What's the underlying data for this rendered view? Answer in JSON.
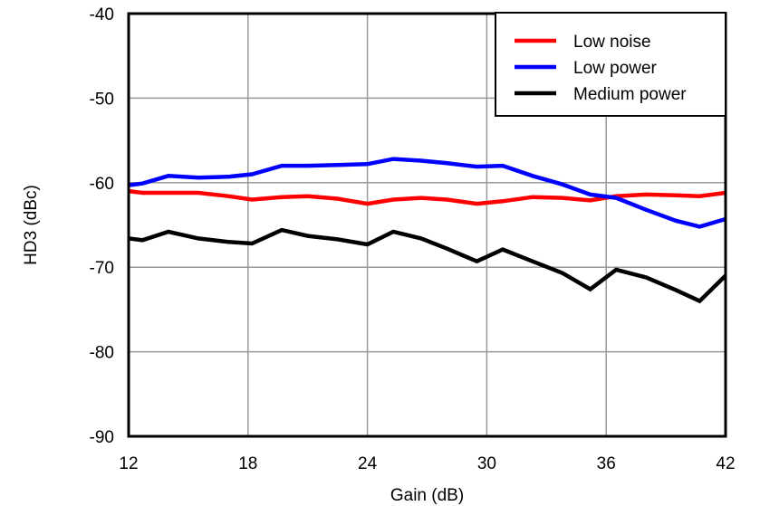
{
  "chart_data": {
    "type": "line",
    "title": "",
    "xlabel": "Gain (dB)",
    "ylabel": "HD3 (dBc)",
    "xlim": [
      12,
      42
    ],
    "ylim": [
      -90,
      -40
    ],
    "xticks": [
      12,
      18,
      24,
      30,
      36,
      42
    ],
    "yticks": [
      -40,
      -50,
      -60,
      -70,
      -80,
      -90
    ],
    "grid": true,
    "legend_position": "upper right",
    "x": [
      12,
      12.7,
      14,
      15.5,
      17,
      18.2,
      19.7,
      21,
      22.5,
      24,
      25.3,
      26.7,
      28,
      29.5,
      30.8,
      32.3,
      33.8,
      35.2,
      36.5,
      38,
      39.5,
      40.7,
      42
    ],
    "series": [
      {
        "name": "Low noise",
        "color": "#ff0000",
        "values": [
          -61.0,
          -61.2,
          -61.2,
          -61.2,
          -61.6,
          -62.0,
          -61.7,
          -61.6,
          -61.9,
          -62.5,
          -62.0,
          -61.8,
          -62.0,
          -62.5,
          -62.2,
          -61.7,
          -61.8,
          -62.1,
          -61.6,
          -61.4,
          -61.5,
          -61.6,
          -61.2
        ]
      },
      {
        "name": "Low power",
        "color": "#0000ff",
        "values": [
          -60.3,
          -60.1,
          -59.2,
          -59.4,
          -59.3,
          -59.0,
          -58.0,
          -58.0,
          -57.9,
          -57.8,
          -57.2,
          -57.4,
          -57.7,
          -58.1,
          -58.0,
          -59.2,
          -60.2,
          -61.4,
          -61.8,
          -63.2,
          -64.5,
          -65.2,
          -64.3
        ]
      },
      {
        "name": "Medium power",
        "color": "#000000",
        "values": [
          -66.6,
          -66.8,
          -65.8,
          -66.6,
          -67.0,
          -67.2,
          -65.6,
          -66.3,
          -66.7,
          -67.3,
          -65.8,
          -66.6,
          -67.8,
          -69.3,
          -67.9,
          -69.3,
          -70.7,
          -72.6,
          -70.3,
          -71.2,
          -72.7,
          -74.0,
          -71.0
        ]
      }
    ]
  }
}
